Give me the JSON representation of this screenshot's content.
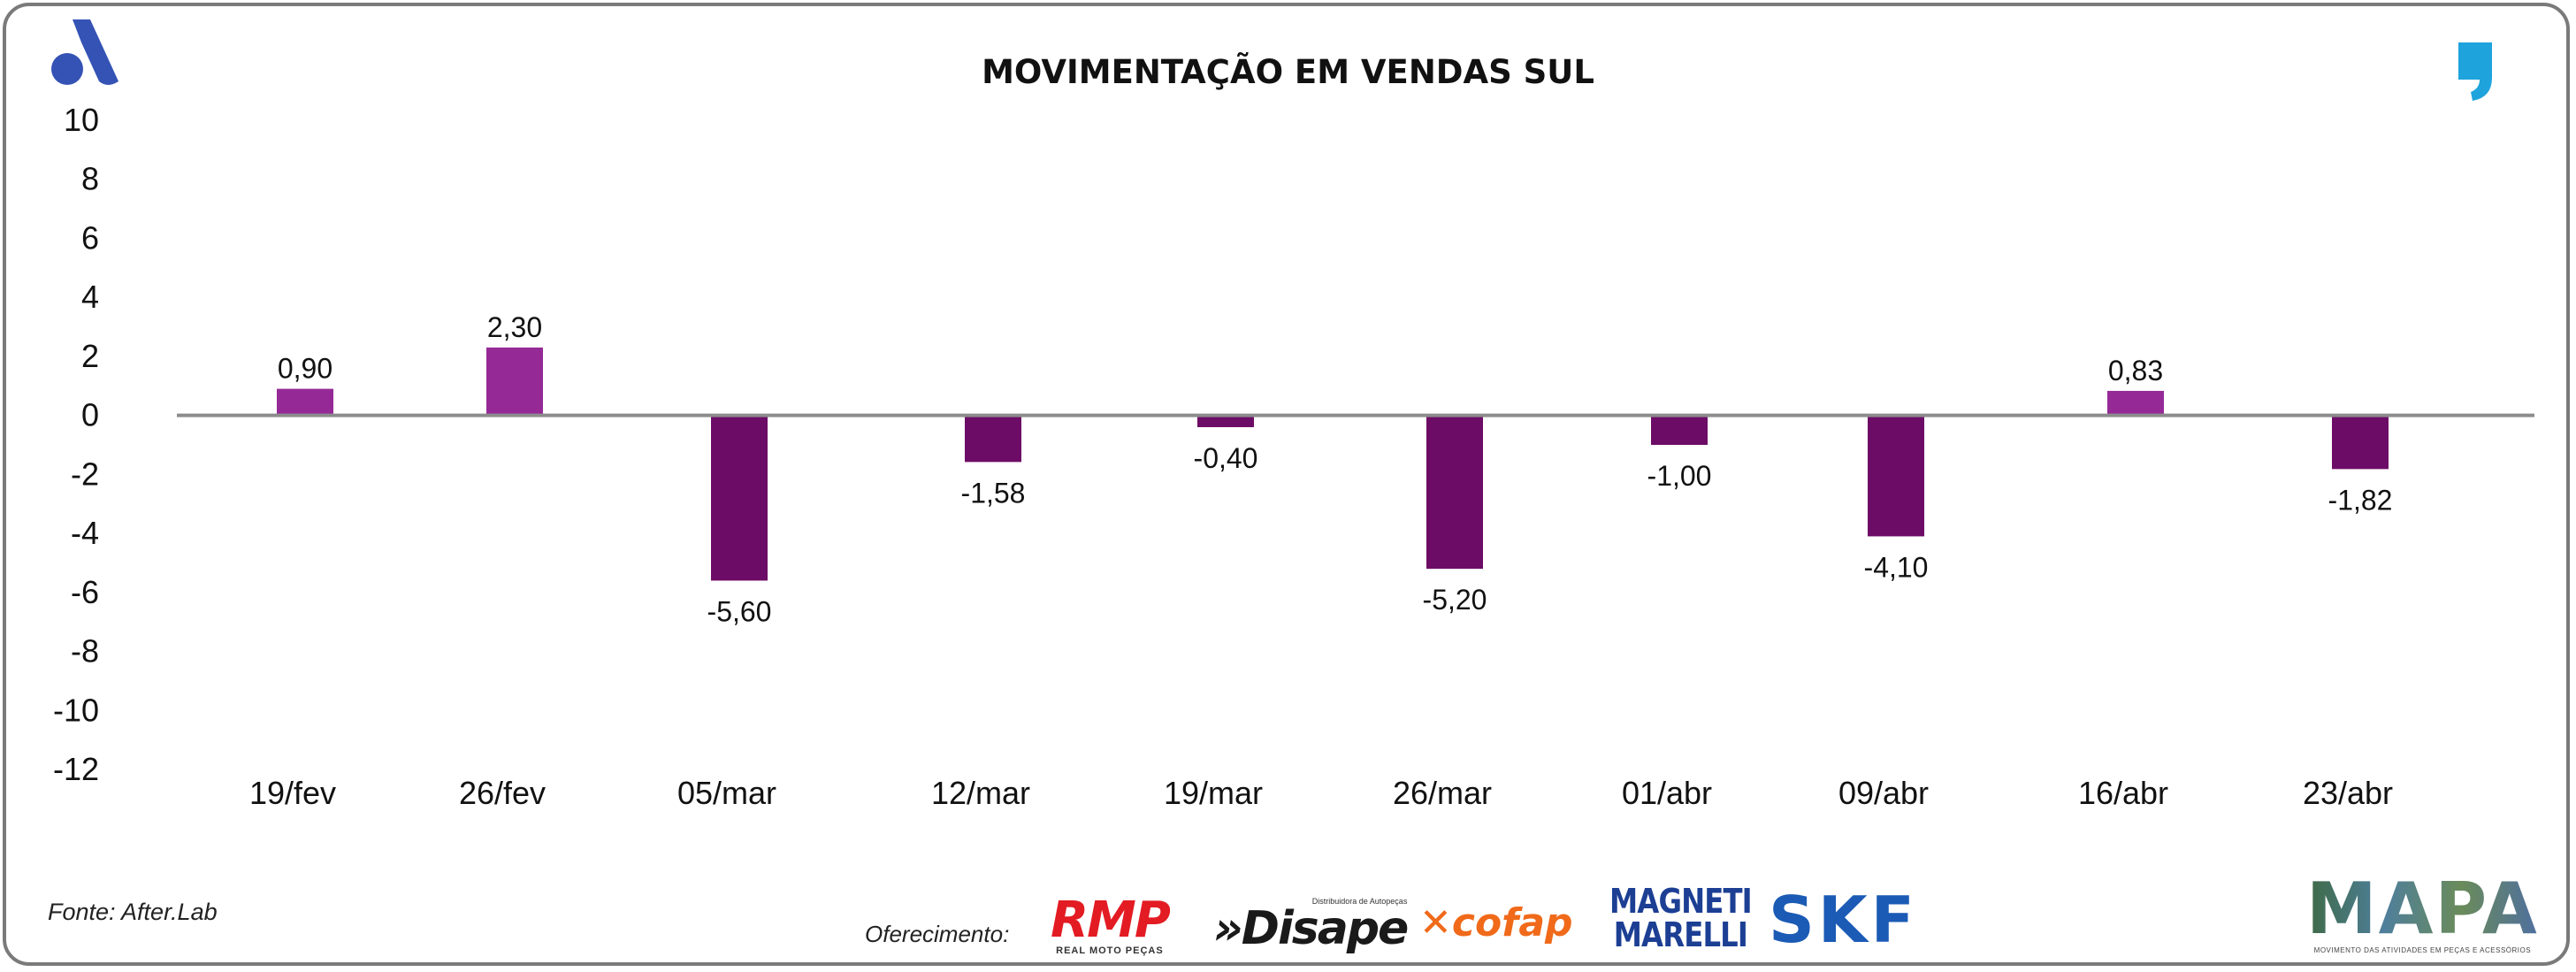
{
  "title": "MOVIMENTAÇÃO EM VENDAS SUL",
  "source": "Fonte: After.Lab",
  "sponsors": {
    "label": "Oferecimento:",
    "rmp": "RMP",
    "rmp_sub": "REAL MOTO PEÇAS",
    "disape_small": "Distribuidora de Autopeças",
    "disape": "»Disape",
    "cofap": "cofap",
    "magneti_l1": "MAGNETI",
    "magneti_l2": "MARELLI",
    "skf": "SKF",
    "mapa": "MAPA",
    "mapa_sub": "MOVIMENTO DAS ATIVIDADES EM PEÇAS E ACESSÓRIOS"
  },
  "chart_data": {
    "type": "bar",
    "categories": [
      "19/fev",
      "26/fev",
      "05/mar",
      "12/mar",
      "19/mar",
      "26/mar",
      "01/abr",
      "09/abr",
      "16/abr",
      "23/abr"
    ],
    "values": [
      0.9,
      2.3,
      -5.6,
      -1.58,
      -0.4,
      -5.2,
      -1.0,
      -4.1,
      0.83,
      -1.82
    ],
    "labels": [
      "0,90",
      "2,30",
      "-5,60",
      "-1,58",
      "-0,40",
      "-5,20",
      "-1,00",
      "-4,10",
      "0,83",
      "-1,82"
    ],
    "ylim": [
      -12,
      10
    ],
    "yticks": [
      10,
      8,
      6,
      4,
      2,
      0,
      -2,
      -4,
      -6,
      -8,
      -10,
      -12
    ],
    "grid": false,
    "colors": {
      "positive": "#952a97",
      "negative": "#6d0c66",
      "axis": "#8c8c8c"
    }
  }
}
